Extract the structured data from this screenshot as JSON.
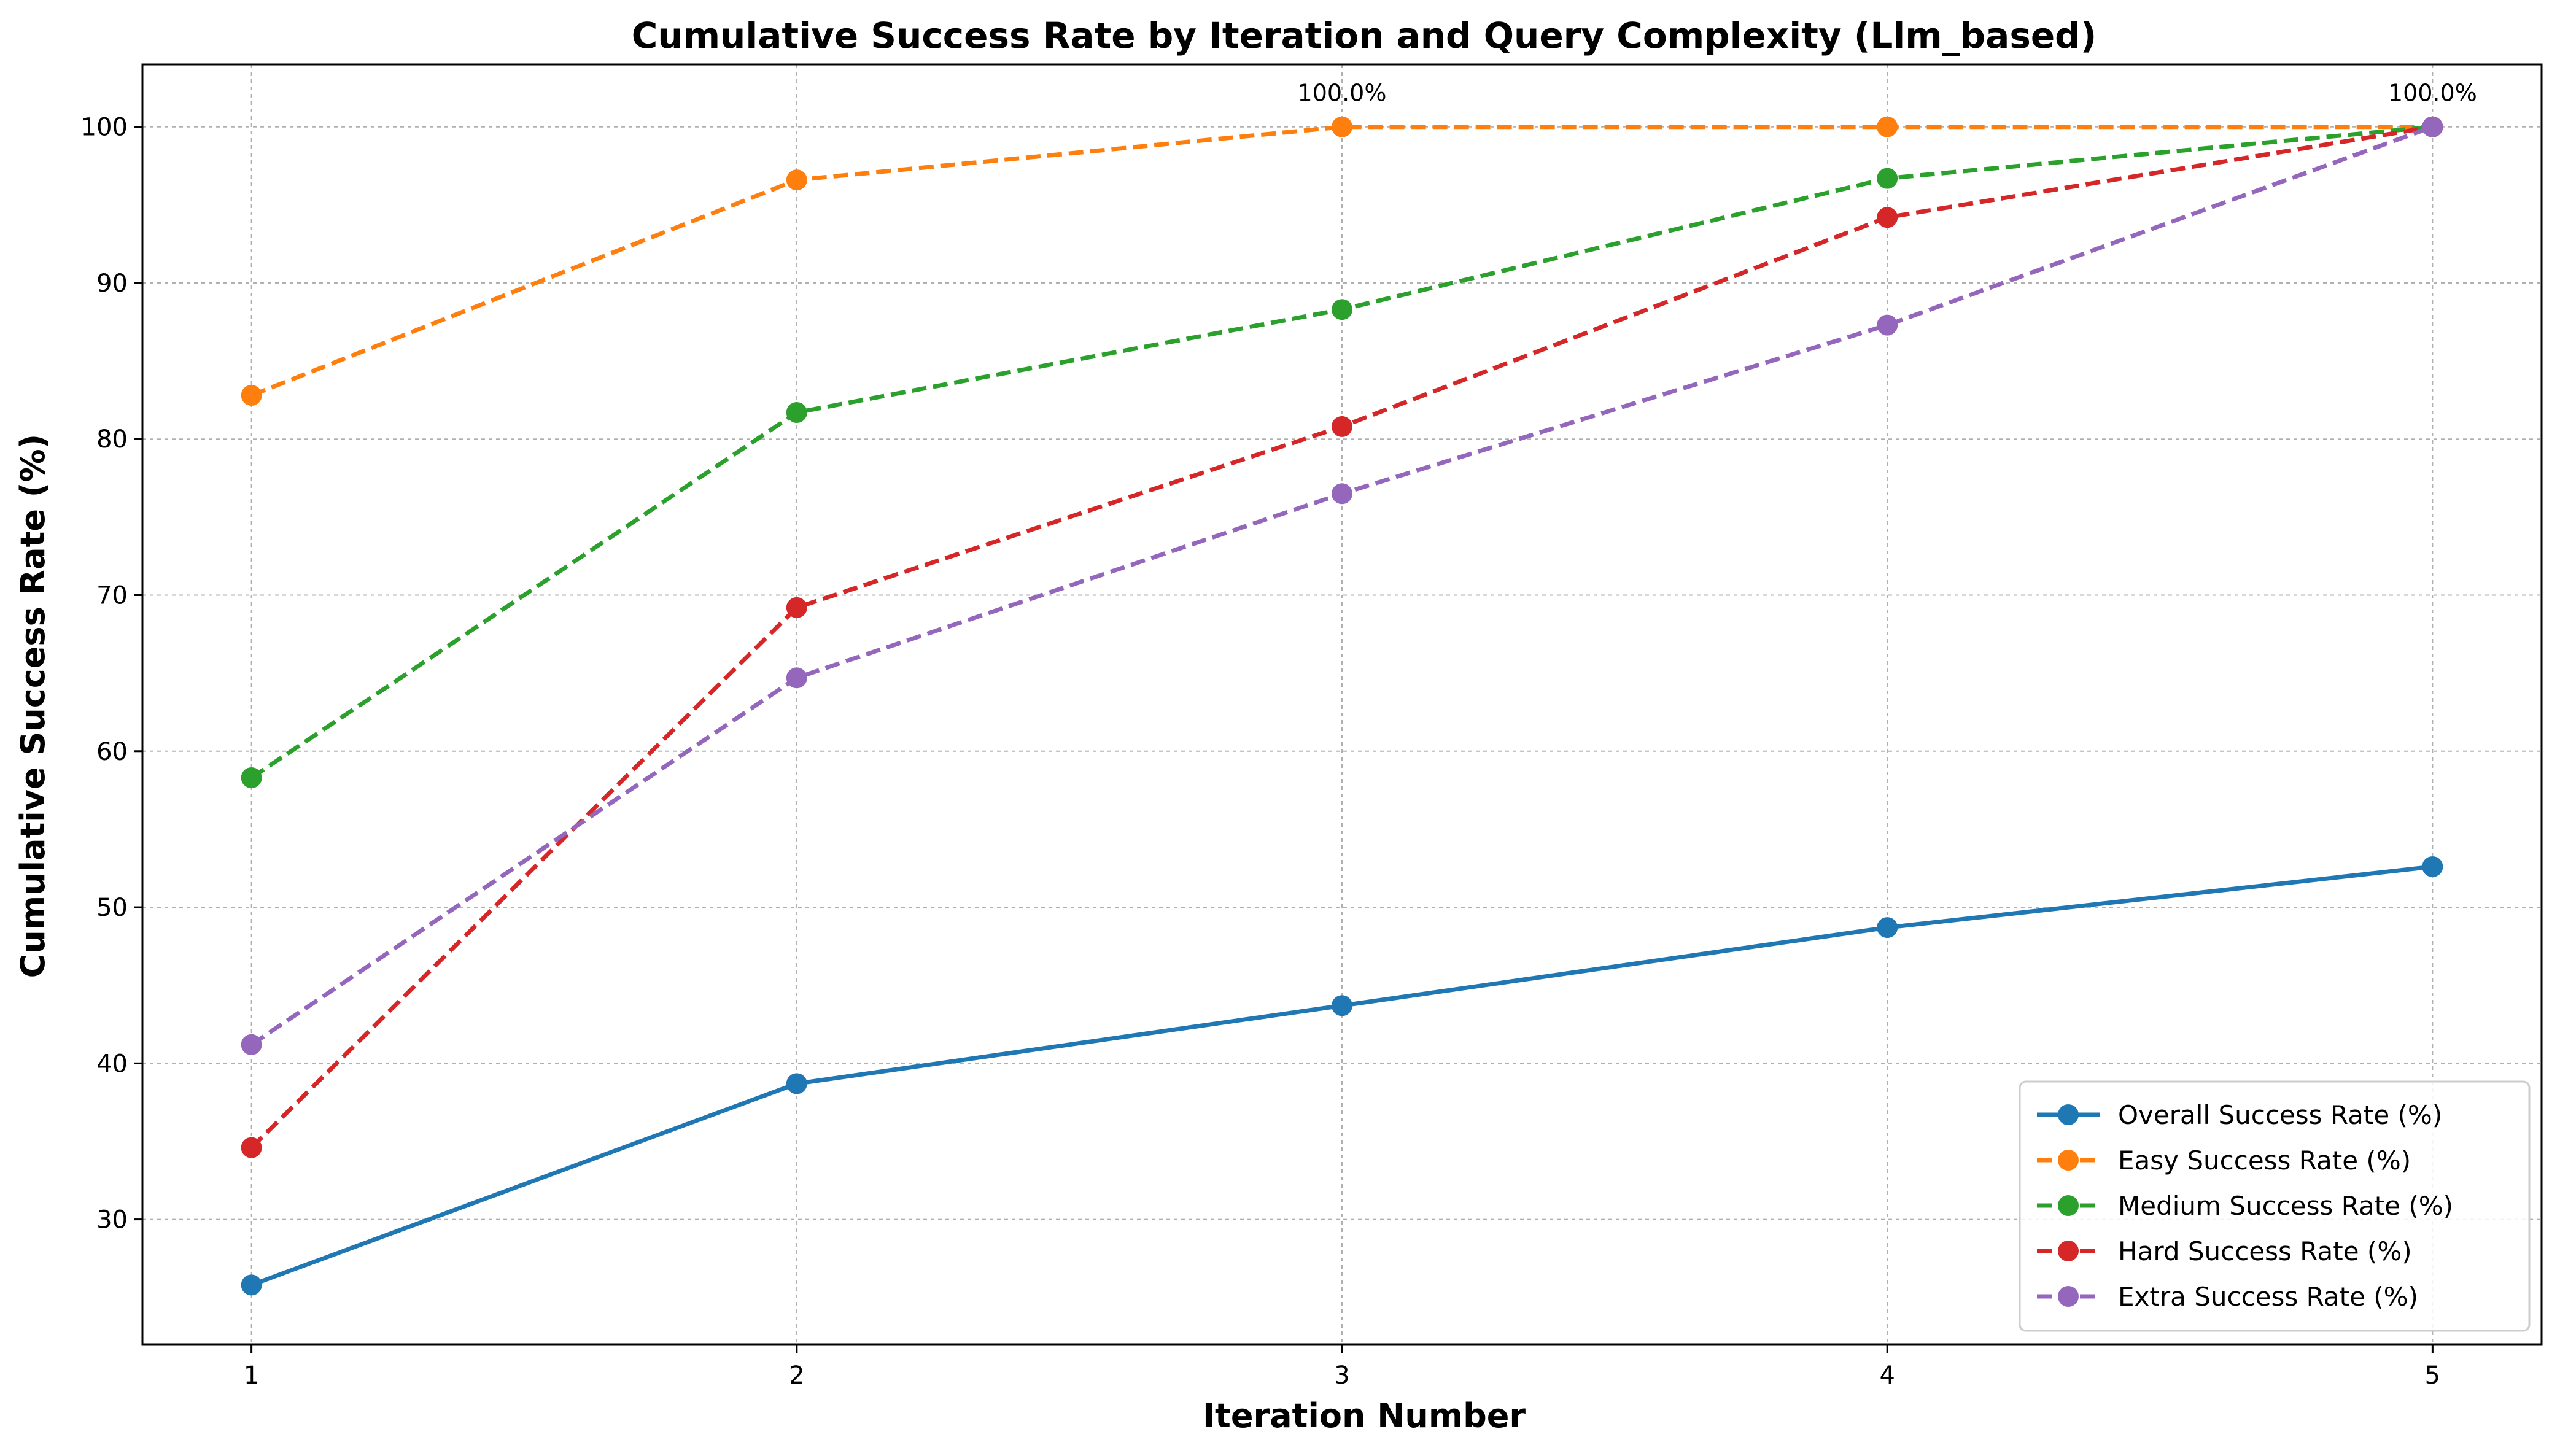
{
  "chart_data": {
    "type": "line",
    "title": "Cumulative Success Rate by Iteration and Query Complexity (Llm_based)",
    "xlabel": "Iteration Number",
    "ylabel": "Cumulative Success Rate (%)",
    "x": [
      1,
      2,
      3,
      4,
      5
    ],
    "xlim": [
      0.8,
      5.2
    ],
    "ylim": [
      22,
      104
    ],
    "xticks": [
      "1",
      "2",
      "3",
      "4",
      "5"
    ],
    "yticks": [
      "30",
      "40",
      "50",
      "60",
      "70",
      "80",
      "90",
      "100"
    ],
    "grid": true,
    "legend_position": "bottom-right",
    "series": [
      {
        "name": "Overall Success Rate (%)",
        "color": "#1f77b4",
        "dashed": false,
        "values": [
          25.8,
          38.7,
          43.7,
          48.7,
          52.6
        ]
      },
      {
        "name": "Easy Success Rate (%)",
        "color": "#ff7f0e",
        "dashed": true,
        "values": [
          82.8,
          96.6,
          100.0,
          100.0,
          100.0
        ]
      },
      {
        "name": "Medium Success Rate (%)",
        "color": "#2ca02c",
        "dashed": true,
        "values": [
          58.3,
          81.7,
          88.3,
          96.7,
          100.0
        ]
      },
      {
        "name": "Hard Success Rate (%)",
        "color": "#d62728",
        "dashed": true,
        "values": [
          34.6,
          69.2,
          80.8,
          94.2,
          100.0
        ]
      },
      {
        "name": "Extra Success Rate (%)",
        "color": "#9467bd",
        "dashed": true,
        "values": [
          41.2,
          64.7,
          76.5,
          87.3,
          100.0
        ]
      }
    ],
    "annotations": [
      {
        "text": "100.0%",
        "x": 3,
        "y": 100.0
      },
      {
        "text": "100.0%",
        "x": 5,
        "y": 100.0
      }
    ]
  }
}
